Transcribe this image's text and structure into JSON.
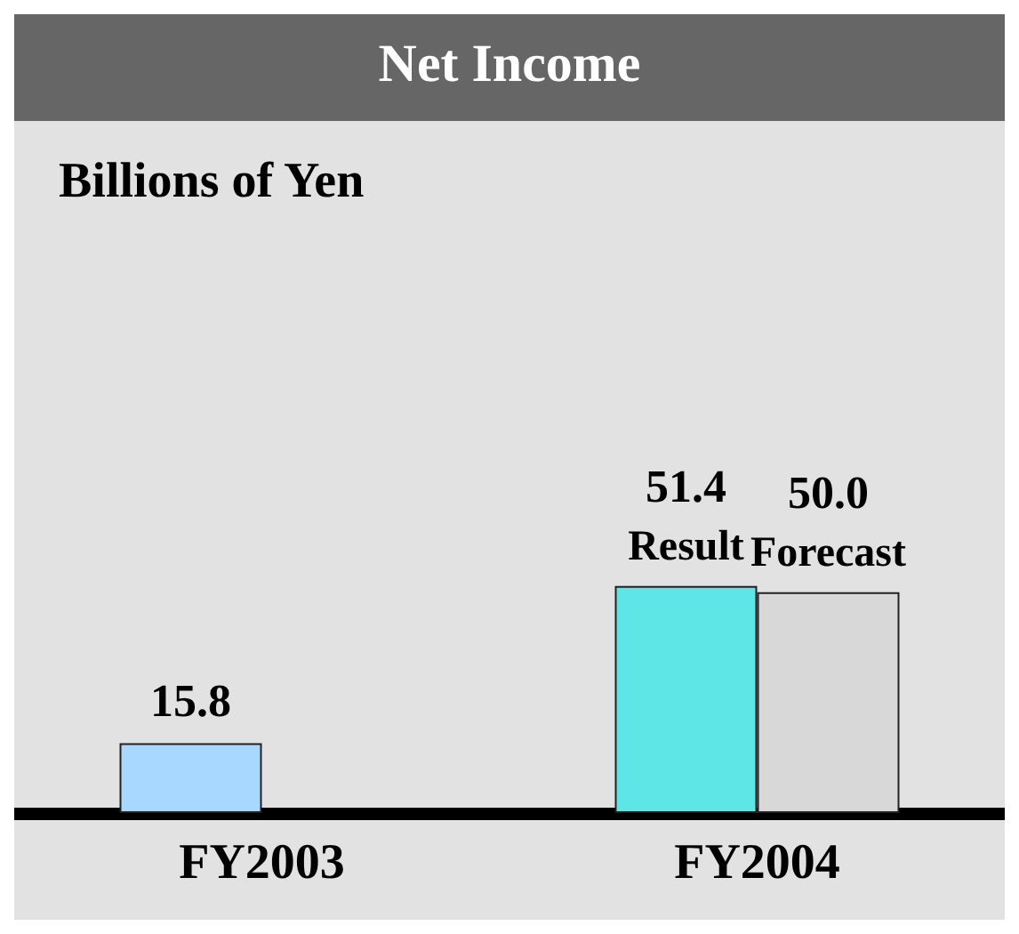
{
  "chart_data": {
    "type": "bar",
    "title": "Net Income",
    "annotations": [
      "Billions of Yen"
    ],
    "categories": [
      "FY2003",
      "FY2004"
    ],
    "series": [
      {
        "name": "Result",
        "colors": [
          "#a8d8ff",
          "#5ee6e6"
        ],
        "values": [
          15.8,
          51.4
        ],
        "value_labels": [
          "15.8",
          "51.4"
        ]
      },
      {
        "name": "Forecast",
        "color": "#d8d8d8",
        "values": [
          null,
          50.0
        ],
        "value_labels": [
          null,
          "50.0"
        ]
      }
    ],
    "legend": false,
    "grid": false
  }
}
